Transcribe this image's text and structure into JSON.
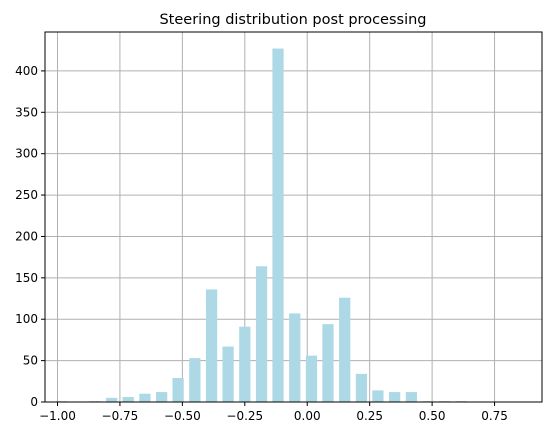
{
  "chart_data": {
    "type": "bar",
    "title": "Steering distribution post processing",
    "xlabel": "",
    "ylabel": "",
    "xlim": [
      -1.05,
      0.94
    ],
    "ylim": [
      0,
      447
    ],
    "grid": true,
    "bar_color": "#add8e6",
    "bar_width": 0.045,
    "x_ticks": [
      -1.0,
      -0.75,
      -0.5,
      -0.25,
      0.0,
      0.25,
      0.5,
      0.75
    ],
    "x_tick_labels": [
      "−1.00",
      "−0.75",
      "−0.50",
      "−0.25",
      "0.00",
      "0.25",
      "0.50",
      "0.75"
    ],
    "y_ticks": [
      0,
      50,
      100,
      150,
      200,
      250,
      300,
      350,
      400
    ],
    "y_tick_labels": [
      "0",
      "50",
      "100",
      "150",
      "200",
      "250",
      "300",
      "350",
      "400"
    ],
    "x": [
      -0.983,
      -0.917,
      -0.85,
      -0.783,
      -0.717,
      -0.65,
      -0.583,
      -0.517,
      -0.45,
      -0.383,
      -0.317,
      -0.25,
      -0.183,
      -0.117,
      -0.05,
      0.017,
      0.083,
      0.15,
      0.217,
      0.283,
      0.35,
      0.417,
      0.483,
      0.55,
      0.617,
      0.683,
      0.75,
      0.817,
      0.883
    ],
    "values": [
      1,
      0,
      1,
      5,
      6,
      10,
      12,
      29,
      53,
      136,
      67,
      91,
      164,
      427,
      107,
      56,
      94,
      126,
      34,
      14,
      12,
      12,
      1,
      1,
      1,
      0,
      0,
      0,
      0
    ]
  }
}
